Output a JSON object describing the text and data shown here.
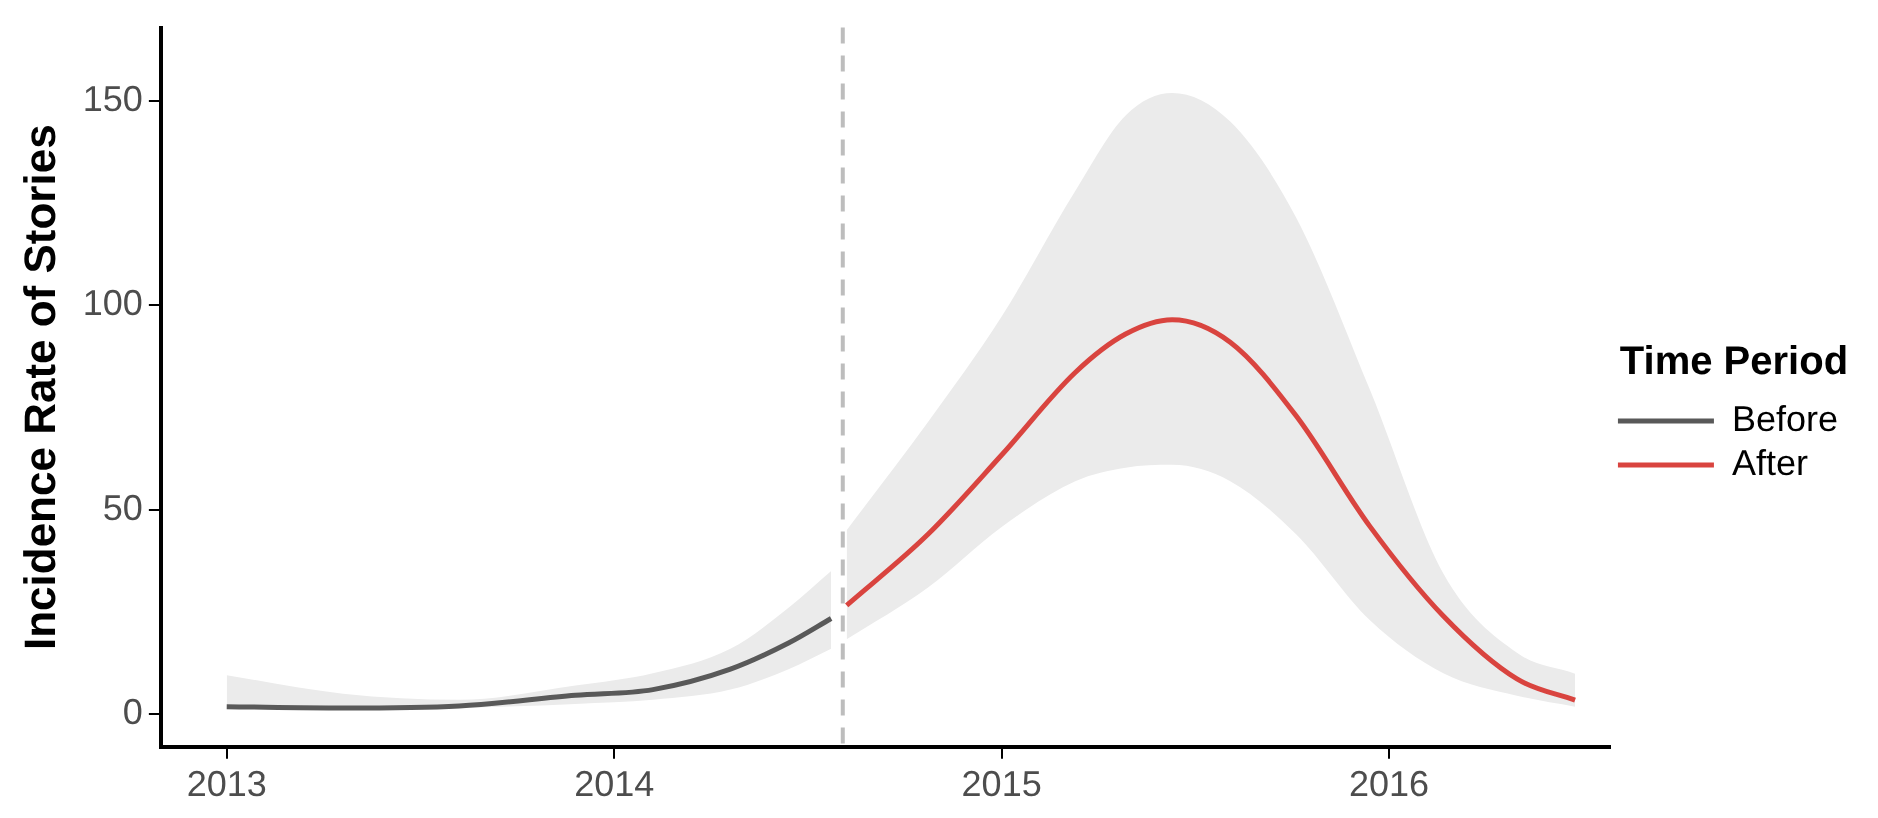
{
  "chart_data": {
    "type": "line",
    "ylabel": "Incidence Rate of Stories",
    "legend_title": "Time Period",
    "legend": "right",
    "grid": false,
    "marker": "none",
    "line_style": "solid",
    "xlim": [
      2012.83,
      2016.57
    ],
    "xticks": [
      2013,
      2014,
      2015,
      2016
    ],
    "ylim": [
      -8,
      168
    ],
    "yticks": [
      0,
      50,
      100,
      150
    ],
    "ref_lines": [
      {
        "axis": "x",
        "value": 2014.59,
        "color": "#bdbdbd",
        "line_style": "dashed"
      }
    ],
    "series": [
      {
        "name": "Before",
        "color": "#595959",
        "x": [
          2013.0,
          2013.3,
          2013.6,
          2013.9,
          2014.1,
          2014.3,
          2014.45,
          2014.56
        ],
        "values": [
          1.8,
          1.5,
          2,
          4.6,
          6,
          11,
          17.4,
          23.4
        ],
        "lower": [
          1.3,
          1.3,
          1.5,
          2.5,
          3.5,
          6,
          11,
          16
        ],
        "upper": [
          9.5,
          5,
          3.5,
          7,
          10,
          16,
          26,
          35
        ]
      },
      {
        "name": "After",
        "color": "#d9443f",
        "x": [
          2014.6,
          2014.81,
          2015.0,
          2015.19,
          2015.32,
          2015.44,
          2015.59,
          2015.76,
          2015.95,
          2016.14,
          2016.33,
          2016.48
        ],
        "values": [
          26.6,
          44,
          63.4,
          83.6,
          93,
          96.5,
          91,
          73,
          46,
          24,
          8.6,
          3.4
        ],
        "lower": [
          18.3,
          31,
          45.8,
          57,
          60.3,
          61,
          57,
          44,
          23,
          10,
          4.5,
          1.8
        ],
        "upper": [
          45,
          71.5,
          97.3,
          128,
          146.5,
          152,
          145,
          121.5,
          79.5,
          34.4,
          15,
          9.9
        ]
      }
    ]
  }
}
